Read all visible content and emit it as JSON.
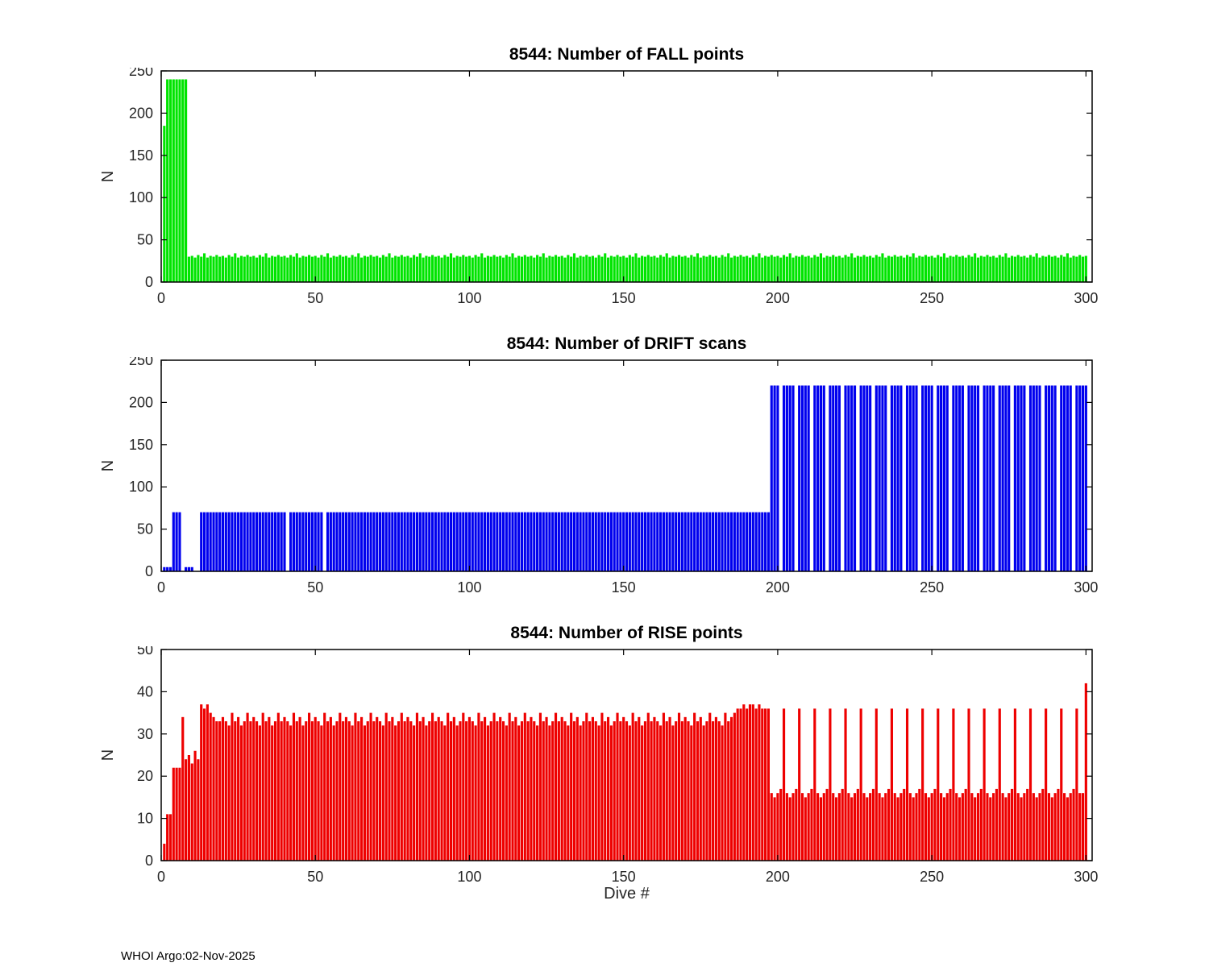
{
  "xlabel": "Dive #",
  "footer": {
    "credit": "WHOI Argo:02-Nov-2025"
  },
  "chart_data": [
    {
      "type": "bar",
      "title": "8544: Number of FALL points",
      "ylabel": "N",
      "color": "#00e400",
      "xlim": [
        0,
        302
      ],
      "ylim": [
        0,
        250
      ],
      "xticks": [
        0,
        50,
        100,
        150,
        200,
        250,
        300
      ],
      "yticks": [
        0,
        50,
        100,
        150,
        200,
        250
      ],
      "x0": 1,
      "values": [
        185,
        240,
        240,
        240,
        240,
        240,
        240,
        240,
        30,
        31,
        29,
        32,
        30,
        34,
        29,
        31,
        30,
        32,
        30,
        31,
        29,
        32,
        30,
        34,
        29,
        31,
        30,
        32,
        30,
        31,
        29,
        32,
        30,
        34,
        29,
        31,
        30,
        32,
        30,
        31,
        29,
        32,
        30,
        34,
        29,
        31,
        30,
        32,
        30,
        31,
        29,
        32,
        30,
        34,
        29,
        31,
        30,
        32,
        30,
        31,
        29,
        32,
        30,
        34,
        29,
        31,
        30,
        32,
        30,
        31,
        29,
        32,
        30,
        34,
        29,
        31,
        30,
        32,
        30,
        31,
        29,
        32,
        30,
        34,
        29,
        31,
        30,
        32,
        30,
        31,
        29,
        32,
        30,
        34,
        29,
        31,
        30,
        32,
        30,
        31,
        29,
        32,
        30,
        34,
        29,
        31,
        30,
        32,
        30,
        31,
        29,
        32,
        30,
        34,
        29,
        31,
        30,
        32,
        30,
        31,
        29,
        32,
        30,
        34,
        29,
        31,
        30,
        32,
        30,
        31,
        29,
        32,
        30,
        34,
        29,
        31,
        30,
        32,
        30,
        31,
        29,
        32,
        30,
        34,
        29,
        31,
        30,
        32,
        30,
        31,
        29,
        32,
        30,
        34,
        29,
        31,
        30,
        32,
        30,
        31,
        29,
        32,
        30,
        34,
        29,
        31,
        30,
        32,
        30,
        31,
        29,
        32,
        30,
        34,
        29,
        31,
        30,
        32,
        30,
        31,
        29,
        32,
        30,
        34,
        29,
        31,
        30,
        32,
        30,
        31,
        29,
        32,
        30,
        34,
        29,
        31,
        30,
        32,
        30,
        31,
        29,
        32,
        30,
        34,
        29,
        31,
        30,
        32,
        30,
        31,
        29,
        32,
        30,
        34,
        29,
        31,
        30,
        32,
        30,
        31,
        29,
        32,
        30,
        34,
        29,
        31,
        30,
        32,
        30,
        31,
        29,
        32,
        30,
        34,
        29,
        31,
        30,
        32,
        30,
        31,
        29,
        32,
        30,
        34,
        29,
        31,
        30,
        32,
        30,
        31,
        29,
        32,
        30,
        34,
        29,
        31,
        30,
        32,
        30,
        31,
        29,
        32,
        30,
        34,
        29,
        31,
        30,
        32,
        30,
        31,
        29,
        32,
        30,
        34,
        29,
        31,
        30,
        32,
        30,
        31,
        29,
        32,
        30,
        34,
        29,
        31,
        30,
        32,
        30,
        31,
        29,
        32,
        30,
        34,
        29,
        31,
        30,
        32,
        30,
        31
      ]
    },
    {
      "type": "bar",
      "title": "8544: Number of DRIFT scans",
      "ylabel": "N",
      "color": "#0000ee",
      "xlim": [
        0,
        302
      ],
      "ylim": [
        0,
        250
      ],
      "xticks": [
        0,
        50,
        100,
        150,
        200,
        250,
        300
      ],
      "yticks": [
        0,
        50,
        100,
        150,
        200,
        250
      ],
      "x0": 1,
      "values": [
        5,
        5,
        5,
        70,
        70,
        70,
        0,
        5,
        5,
        5,
        0,
        0,
        70,
        70,
        70,
        70,
        70,
        70,
        70,
        70,
        70,
        70,
        70,
        70,
        70,
        70,
        70,
        70,
        70,
        70,
        70,
        70,
        70,
        70,
        70,
        70,
        70,
        70,
        70,
        70,
        0,
        70,
        70,
        70,
        70,
        70,
        70,
        70,
        70,
        70,
        70,
        70,
        0,
        70,
        70,
        70,
        70,
        70,
        70,
        70,
        70,
        70,
        70,
        70,
        70,
        70,
        70,
        70,
        70,
        70,
        70,
        70,
        70,
        70,
        70,
        70,
        70,
        70,
        70,
        70,
        70,
        70,
        70,
        70,
        70,
        70,
        70,
        70,
        70,
        70,
        70,
        70,
        70,
        70,
        70,
        70,
        70,
        70,
        70,
        70,
        70,
        70,
        70,
        70,
        70,
        70,
        70,
        70,
        70,
        70,
        70,
        70,
        70,
        70,
        70,
        70,
        70,
        70,
        70,
        70,
        70,
        70,
        70,
        70,
        70,
        70,
        70,
        70,
        70,
        70,
        70,
        70,
        70,
        70,
        70,
        70,
        70,
        70,
        70,
        70,
        70,
        70,
        70,
        70,
        70,
        70,
        70,
        70,
        70,
        70,
        70,
        70,
        70,
        70,
        70,
        70,
        70,
        70,
        70,
        70,
        70,
        70,
        70,
        70,
        70,
        70,
        70,
        70,
        70,
        70,
        70,
        70,
        70,
        70,
        70,
        70,
        70,
        70,
        70,
        70,
        70,
        70,
        70,
        70,
        70,
        70,
        70,
        70,
        70,
        70,
        70,
        70,
        70,
        70,
        70,
        70,
        70,
        220,
        220,
        220,
        0,
        220,
        220,
        220,
        220,
        0,
        220,
        220,
        220,
        220,
        0,
        220,
        220,
        220,
        220,
        0,
        220,
        220,
        220,
        220,
        0,
        220,
        220,
        220,
        220,
        0,
        220,
        220,
        220,
        220,
        0,
        220,
        220,
        220,
        220,
        0,
        220,
        220,
        220,
        220,
        0,
        220,
        220,
        220,
        220,
        0,
        220,
        220,
        220,
        220,
        0,
        220,
        220,
        220,
        220,
        0,
        220,
        220,
        220,
        220,
        0,
        220,
        220,
        220,
        220,
        0,
        220,
        220,
        220,
        220,
        0,
        220,
        220,
        220,
        220,
        0,
        220,
        220,
        220,
        220,
        0,
        220,
        220,
        220,
        220,
        0,
        220,
        220,
        220,
        220,
        0,
        220,
        220,
        220,
        220,
        0,
        220,
        220,
        220,
        220
      ]
    },
    {
      "type": "bar",
      "title": "8544: Number of RISE points",
      "ylabel": "N",
      "color": "#ee0000",
      "xlim": [
        0,
        302
      ],
      "ylim": [
        0,
        50
      ],
      "xticks": [
        0,
        50,
        100,
        150,
        200,
        250,
        300
      ],
      "yticks": [
        0,
        10,
        20,
        30,
        40,
        50
      ],
      "x0": 1,
      "values": [
        4,
        11,
        11,
        22,
        22,
        22,
        34,
        24,
        25,
        23,
        26,
        24,
        37,
        36,
        37,
        35,
        34,
        33,
        33,
        34,
        33,
        32,
        35,
        33,
        34,
        32,
        33,
        35,
        33,
        34,
        33,
        32,
        35,
        33,
        34,
        32,
        33,
        35,
        33,
        34,
        33,
        32,
        35,
        33,
        34,
        32,
        33,
        35,
        33,
        34,
        33,
        32,
        35,
        33,
        34,
        32,
        33,
        35,
        33,
        34,
        33,
        32,
        35,
        33,
        34,
        32,
        33,
        35,
        33,
        34,
        33,
        32,
        35,
        33,
        34,
        32,
        33,
        35,
        33,
        34,
        33,
        32,
        35,
        33,
        34,
        32,
        33,
        35,
        33,
        34,
        33,
        32,
        35,
        33,
        34,
        32,
        33,
        35,
        33,
        34,
        33,
        32,
        35,
        33,
        34,
        32,
        33,
        35,
        33,
        34,
        33,
        32,
        35,
        33,
        34,
        32,
        33,
        35,
        33,
        34,
        33,
        32,
        35,
        33,
        34,
        32,
        33,
        35,
        33,
        34,
        33,
        32,
        35,
        33,
        34,
        32,
        33,
        35,
        33,
        34,
        33,
        32,
        35,
        33,
        34,
        32,
        33,
        35,
        33,
        34,
        33,
        32,
        35,
        33,
        34,
        32,
        33,
        35,
        33,
        34,
        33,
        32,
        35,
        33,
        34,
        32,
        33,
        35,
        33,
        34,
        33,
        32,
        35,
        33,
        34,
        32,
        33,
        35,
        33,
        34,
        33,
        32,
        35,
        33,
        34,
        35,
        36,
        36,
        37,
        36,
        37,
        37,
        36,
        37,
        36,
        36,
        36,
        16,
        15,
        16,
        17,
        36,
        16,
        15,
        16,
        17,
        36,
        16,
        15,
        16,
        17,
        36,
        16,
        15,
        16,
        17,
        36,
        16,
        15,
        16,
        17,
        36,
        16,
        15,
        16,
        17,
        36,
        16,
        15,
        16,
        17,
        36,
        16,
        15,
        16,
        17,
        36,
        16,
        15,
        16,
        17,
        36,
        16,
        15,
        16,
        17,
        36,
        16,
        15,
        16,
        17,
        36,
        16,
        15,
        16,
        17,
        36,
        16,
        15,
        16,
        17,
        36,
        16,
        15,
        16,
        17,
        36,
        16,
        15,
        16,
        17,
        36,
        16,
        15,
        16,
        17,
        36,
        16,
        15,
        16,
        17,
        36,
        16,
        15,
        16,
        17,
        36,
        16,
        15,
        16,
        17,
        36,
        16,
        15,
        16,
        17,
        36,
        16,
        16,
        42
      ]
    }
  ]
}
